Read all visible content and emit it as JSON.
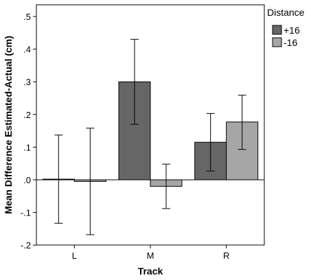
{
  "chart_data": {
    "type": "bar",
    "title": "",
    "xlabel": "Track",
    "ylabel": "Mean Difference Estimated-Actual (cm)",
    "categories": [
      "L",
      "M",
      "R"
    ],
    "ylim": [
      -0.2,
      0.55
    ],
    "yticks": [
      ".5",
      ".4",
      ".3",
      ".2",
      ".1",
      ".0",
      "-.1",
      "-.2"
    ],
    "ytick_values": [
      0.5,
      0.4,
      0.3,
      0.2,
      0.1,
      0.0,
      -0.1,
      -0.2
    ],
    "grid": false,
    "legend": {
      "title": "Distance",
      "position": "right"
    },
    "series": [
      {
        "name": "+16",
        "color": "#666666",
        "values": [
          0.002,
          0.3,
          0.115
        ],
        "err_low": [
          -0.133,
          0.17,
          0.027
        ],
        "err_high": [
          0.137,
          0.43,
          0.203
        ]
      },
      {
        "name": "-16",
        "color": "#a6a6a6",
        "values": [
          -0.005,
          -0.02,
          0.177
        ],
        "err_low": [
          -0.168,
          -0.088,
          0.093
        ],
        "err_high": [
          0.158,
          0.048,
          0.259
        ]
      }
    ],
    "reference_line": 0.0
  }
}
